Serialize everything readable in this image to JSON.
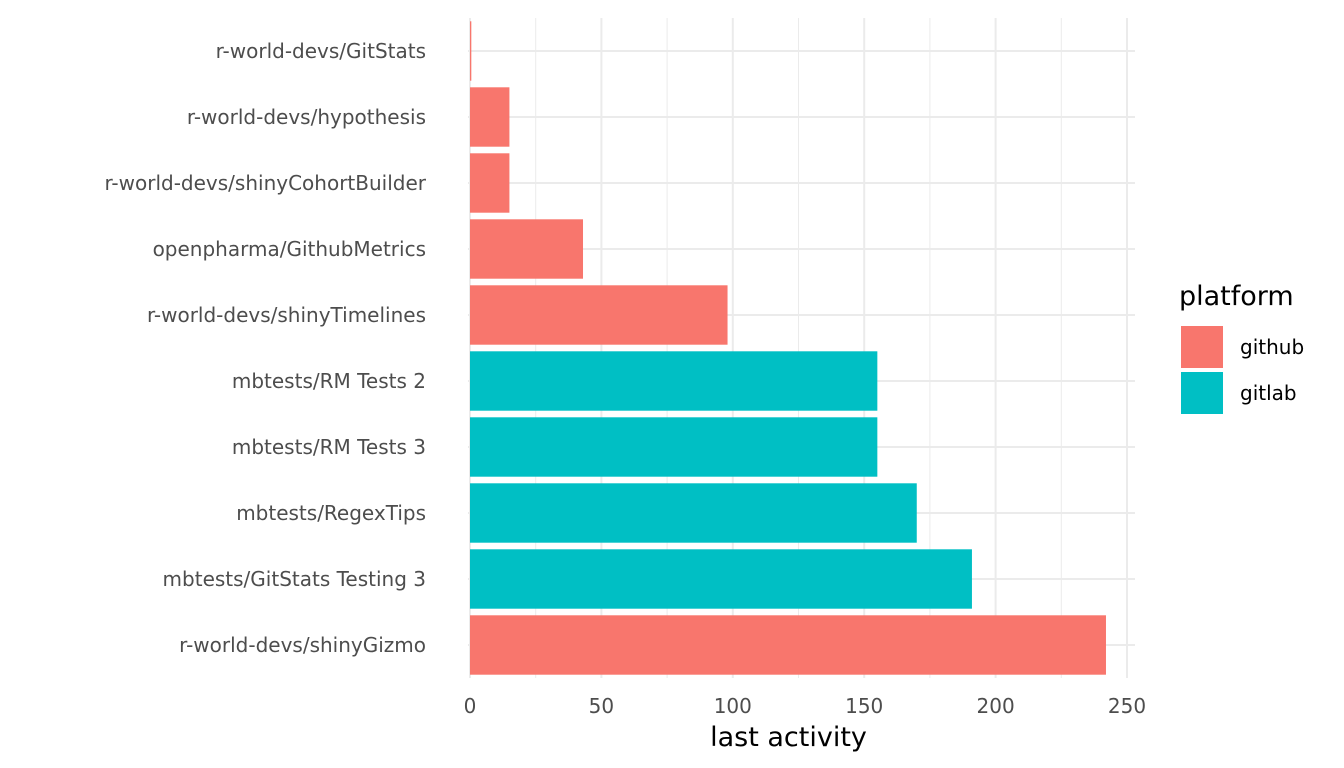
{
  "chart_data": {
    "type": "bar",
    "orientation": "horizontal",
    "title": "",
    "xlabel": "last activity",
    "ylabel": "",
    "xlim": [
      0,
      252
    ],
    "x_ticks": [
      0,
      50,
      100,
      150,
      200,
      250
    ],
    "grid": true,
    "legend": {
      "title": "platform",
      "position": "right",
      "entries": [
        "github",
        "gitlab"
      ]
    },
    "colors": {
      "github": "#F8766D",
      "gitlab": "#00BFC4"
    },
    "categories": [
      "r-world-devs/GitStats",
      "r-world-devs/hypothesis",
      "r-world-devs/shinyCohortBuilder",
      "openpharma/GithubMetrics",
      "r-world-devs/shinyTimelines",
      "mbtests/RM Tests 2",
      "mbtests/RM Tests 3",
      "mbtests/RegexTips",
      "mbtests/GitStats Testing 3",
      "r-world-devs/shinyGizmo"
    ],
    "values": [
      0.5,
      15,
      15,
      43,
      98,
      155,
      155,
      170,
      191,
      242
    ],
    "platform": [
      "github",
      "github",
      "github",
      "github",
      "github",
      "gitlab",
      "gitlab",
      "gitlab",
      "gitlab",
      "github"
    ]
  }
}
